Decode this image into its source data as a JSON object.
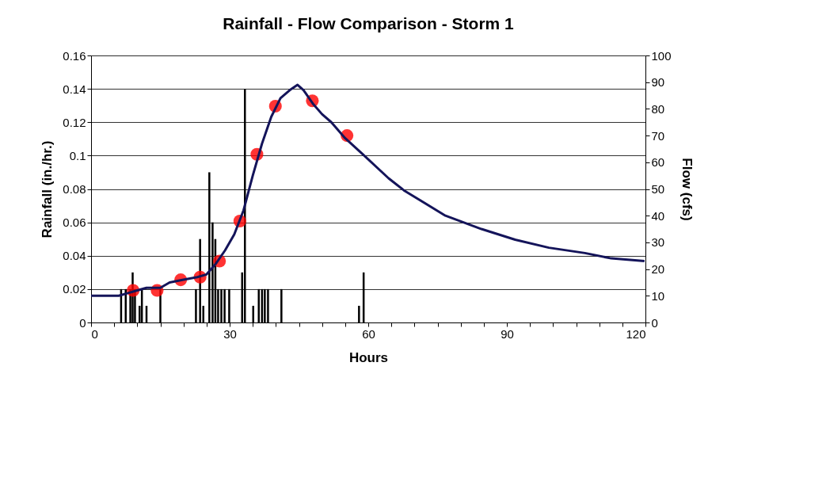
{
  "chart_data": {
    "type": "bar",
    "title": "Rainfall - Flow Comparison - Storm 1",
    "xlabel": "Hours",
    "ylabel": "Rainfall (in./hr.)",
    "y2label": "Flow (cfs)",
    "xlim": [
      0,
      120
    ],
    "xticks": [
      0,
      {
        "value": 5,
        "label": null
      },
      {
        "value": 10,
        "label": null
      },
      {
        "value": 15,
        "label": null
      },
      {
        "value": 20,
        "label": null
      },
      {
        "value": 25,
        "label": null
      },
      30,
      {
        "value": 35,
        "label": null
      },
      {
        "value": 40,
        "label": null
      },
      {
        "value": 45,
        "label": null
      },
      {
        "value": 50,
        "label": null
      },
      {
        "value": 55,
        "label": null
      },
      60,
      {
        "value": 65,
        "label": null
      },
      {
        "value": 70,
        "label": null
      },
      {
        "value": 75,
        "label": null
      },
      {
        "value": 80,
        "label": null
      },
      {
        "value": 85,
        "label": null
      },
      90,
      {
        "value": 95,
        "label": null
      },
      {
        "value": 100,
        "label": null
      },
      {
        "value": 105,
        "label": null
      },
      {
        "value": 110,
        "label": null
      },
      {
        "value": 115,
        "label": null
      },
      120
    ],
    "ylim": [
      0,
      0.16
    ],
    "yticks": [
      0,
      0.02,
      0.04,
      0.06,
      0.08,
      0.1,
      0.12,
      0.14,
      0.16
    ],
    "y2lim": [
      0,
      100
    ],
    "y2ticks": [
      0,
      10,
      20,
      30,
      40,
      50,
      60,
      70,
      80,
      90,
      100
    ],
    "grid": "y",
    "series": [
      {
        "color": "#000000",
        "x": [
          6.5,
          7.5,
          8.5,
          9,
          9.5,
          10.5,
          11,
          12,
          15,
          22.7,
          23.6,
          24.3,
          25.6,
          26.3,
          26.9,
          27.5,
          28.2,
          28.9,
          29.9,
          32.7,
          33.3,
          35.1,
          36.3,
          37,
          37.6,
          38.3,
          41.2,
          58,
          59
        ],
        "values": [
          0.02,
          0.02,
          0.02,
          0.03,
          0.02,
          0.01,
          0.02,
          0.01,
          0.02,
          0.02,
          0.05,
          0.01,
          0.09,
          0.06,
          0.05,
          0.02,
          0.02,
          0.02,
          0.02,
          0.03,
          0.14,
          0.01,
          0.02,
          0.02,
          0.02,
          0.02,
          0.02,
          0.01,
          0.03
        ]
      },
      {
        "type": "line",
        "axis": "y2",
        "color": "#14145a",
        "marker": "none",
        "line_style": "solid",
        "x": [
          0,
          6,
          8,
          10,
          12,
          15,
          17,
          20,
          23,
          25,
          27,
          29,
          31,
          33,
          35,
          37,
          39,
          41,
          43,
          44.7,
          46,
          48,
          50,
          52,
          55,
          58.8,
          64.4,
          67.7,
          76.7,
          84.5,
          91.8,
          99.1,
          106.9,
          112.6,
          119.8
        ],
        "values": [
          10,
          10,
          11,
          12,
          13,
          13,
          15,
          16,
          17,
          18,
          22,
          27,
          33,
          42,
          55,
          67,
          77,
          84,
          87,
          89,
          87,
          82,
          78,
          75,
          69,
          63,
          54,
          49.5,
          40,
          35,
          31,
          28,
          26,
          24,
          23
        ]
      },
      {
        "type": "scatter",
        "axis": "y2",
        "color": "#ff0000",
        "marker": "circle",
        "x": [
          9.1,
          14.3,
          19.4,
          23.6,
          27.8,
          32.2,
          35.9,
          39.9,
          47.9,
          55.4
        ],
        "values": [
          12,
          12,
          16,
          17,
          23,
          38,
          63,
          81,
          83,
          70
        ]
      }
    ]
  }
}
